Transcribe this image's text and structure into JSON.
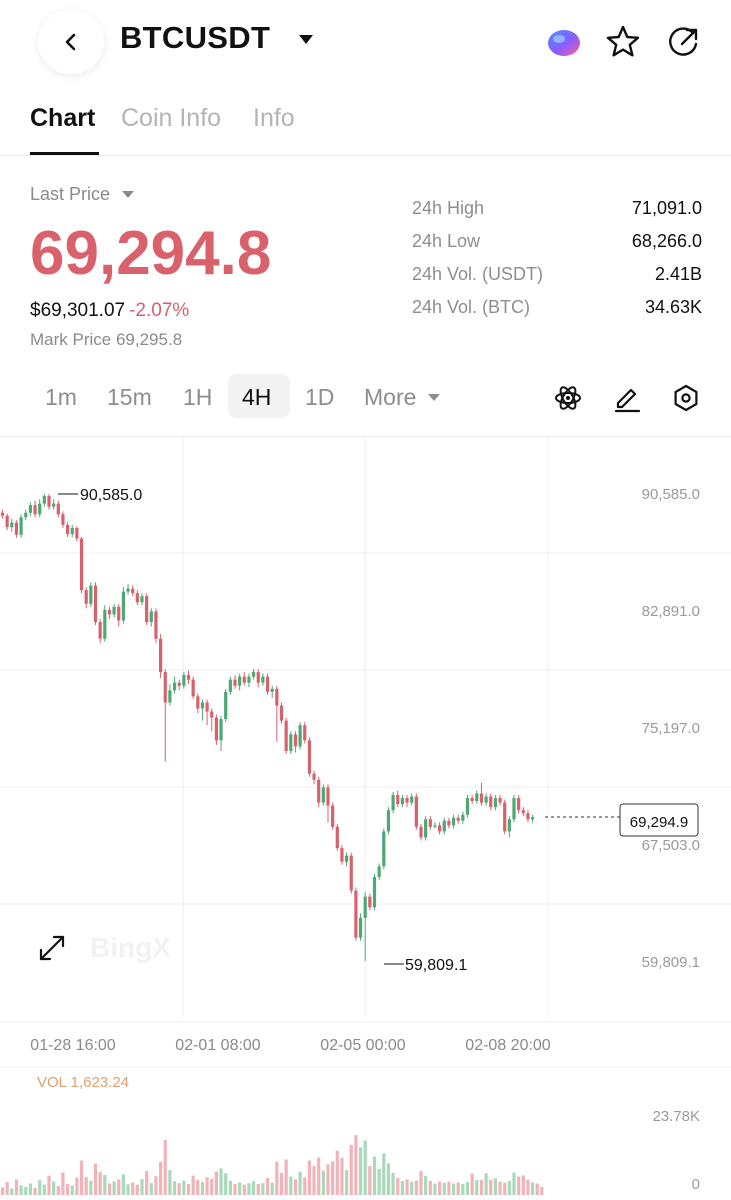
{
  "header": {
    "symbol": "BTCUSDT",
    "icons": [
      "chevron-left-icon",
      "caret-down-icon",
      "ai-orb-icon",
      "star-icon",
      "share-icon"
    ]
  },
  "tabs": [
    {
      "label": "Chart",
      "active": true
    },
    {
      "label": "Coin Info",
      "active": false
    },
    {
      "label": "Info",
      "active": false
    }
  ],
  "price": {
    "last_label": "Last Price",
    "last_price": "69,294.8",
    "usd_value": "$69,301.07",
    "change": "-2.07%",
    "mark_label": "Mark Price",
    "mark_price": "69,295.8",
    "color_down": "#d9616c",
    "color_up": "#4ea874"
  },
  "stats": [
    {
      "label": "24h High",
      "value": "71,091.0"
    },
    {
      "label": "24h Low",
      "value": "68,266.0"
    },
    {
      "label": "24h Vol. (USDT)",
      "value": "2.41B"
    },
    {
      "label": "24h Vol. (BTC)",
      "value": "34.63K"
    }
  ],
  "intervals": [
    {
      "label": "1m",
      "active": false
    },
    {
      "label": "15m",
      "active": false
    },
    {
      "label": "1H",
      "active": false
    },
    {
      "label": "4H",
      "active": true
    },
    {
      "label": "1D",
      "active": false
    },
    {
      "label": "More",
      "active": false
    }
  ],
  "tools": [
    "atom-indicator-icon",
    "pencil-draw-icon",
    "hexagon-settings-icon"
  ],
  "chart_data": {
    "type": "candlestick",
    "y_ticks": [
      "90,585.0",
      "82,891.0",
      "75,197.0",
      "67,503.0",
      "59,809.1"
    ],
    "ylim": [
      59809.1,
      90585.0
    ],
    "x_ticks": [
      "01-28 16:00",
      "02-01 08:00",
      "02-05 00:00",
      "02-08 20:00"
    ],
    "high_label": "90,585.0",
    "low_label": "59,809.1",
    "current_price_label": "69,294.9",
    "current_price": 69294.9,
    "watermark": "BingX",
    "candles": [
      [
        89350,
        89150,
        89550,
        88950
      ],
      [
        89150,
        88400,
        89300,
        88200
      ],
      [
        88400,
        88700,
        88950,
        88100
      ],
      [
        88700,
        87900,
        88850,
        87700
      ],
      [
        87900,
        89050,
        89250,
        87700
      ],
      [
        89050,
        89350,
        89550,
        88850
      ],
      [
        89350,
        89850,
        90050,
        89150
      ],
      [
        89850,
        89250,
        90150,
        89050
      ],
      [
        89250,
        89950,
        90250,
        89050
      ],
      [
        89950,
        90450,
        90585,
        89750
      ],
      [
        90450,
        89750,
        90585,
        89550
      ],
      [
        89750,
        89950,
        90250,
        89550
      ],
      [
        89950,
        89250,
        90150,
        89050
      ],
      [
        89250,
        88550,
        89450,
        88350
      ],
      [
        88550,
        87950,
        88750,
        87750
      ],
      [
        87950,
        88350,
        88550,
        87750
      ],
      [
        88350,
        87650,
        88450,
        87450
      ],
      [
        87650,
        84250,
        87750,
        84050
      ],
      [
        84250,
        83350,
        84450,
        83050
      ],
      [
        83350,
        84550,
        84750,
        83150
      ],
      [
        84550,
        82150,
        84750,
        81950
      ],
      [
        82150,
        81050,
        82350,
        80750
      ],
      [
        81050,
        82950,
        83250,
        80850
      ],
      [
        82950,
        82650,
        83150,
        82350
      ],
      [
        82650,
        83150,
        83350,
        82450
      ],
      [
        83150,
        82250,
        83350,
        81850
      ],
      [
        82250,
        84150,
        84450,
        82050
      ],
      [
        84150,
        84350,
        84650,
        83950
      ],
      [
        84350,
        84050,
        84550,
        83850
      ],
      [
        84050,
        83450,
        84250,
        83250
      ],
      [
        83450,
        83850,
        84050,
        83250
      ],
      [
        83850,
        82150,
        84050,
        81950
      ],
      [
        82150,
        82850,
        83050,
        81850
      ],
      [
        82850,
        81050,
        83050,
        80750
      ],
      [
        81050,
        78850,
        81350,
        78450
      ],
      [
        78850,
        76850,
        79050,
        72950
      ],
      [
        76850,
        77650,
        78050,
        76650
      ],
      [
        77650,
        78150,
        78550,
        77450
      ],
      [
        78150,
        77950,
        78350,
        77650
      ],
      [
        77950,
        78650,
        78850,
        77750
      ],
      [
        78650,
        78350,
        78950,
        78050
      ],
      [
        78350,
        77250,
        78550,
        77050
      ],
      [
        77250,
        76450,
        77450,
        76150
      ],
      [
        76450,
        76850,
        77050,
        75650
      ],
      [
        76850,
        76250,
        77050,
        75350
      ],
      [
        76250,
        75850,
        76450,
        74950
      ],
      [
        75850,
        74350,
        76050,
        74050
      ],
      [
        74350,
        75750,
        75950,
        73650
      ],
      [
        75750,
        77550,
        77750,
        75550
      ],
      [
        77550,
        78350,
        78550,
        77350
      ],
      [
        78350,
        77950,
        78650,
        77750
      ],
      [
        77950,
        78550,
        78750,
        77650
      ],
      [
        78550,
        78150,
        78850,
        77950
      ],
      [
        78150,
        78550,
        78750,
        77850
      ],
      [
        78550,
        78850,
        79050,
        78350
      ],
      [
        78850,
        78150,
        79050,
        77850
      ],
      [
        78150,
        78550,
        78750,
        77950
      ],
      [
        78550,
        77550,
        78750,
        77350
      ],
      [
        77550,
        77750,
        77950,
        77150
      ],
      [
        77750,
        76650,
        77950,
        74250
      ],
      [
        76650,
        75650,
        76850,
        75450
      ],
      [
        75650,
        73650,
        75850,
        73450
      ],
      [
        73650,
        74750,
        74950,
        73450
      ],
      [
        74750,
        73950,
        74950,
        73550
      ],
      [
        73950,
        75350,
        75550,
        73750
      ],
      [
        75350,
        74350,
        75550,
        74150
      ],
      [
        74350,
        72150,
        74550,
        71950
      ],
      [
        72150,
        71750,
        72350,
        71450
      ],
      [
        71750,
        70250,
        71950,
        69950
      ],
      [
        70250,
        71250,
        71450,
        70050
      ],
      [
        71250,
        70050,
        71450,
        68950
      ],
      [
        70050,
        68650,
        70250,
        68450
      ],
      [
        68650,
        67250,
        68850,
        67050
      ],
      [
        67250,
        66350,
        67450,
        66150
      ],
      [
        66350,
        66750,
        66950,
        66050
      ],
      [
        66750,
        64450,
        66950,
        64250
      ],
      [
        64450,
        61350,
        64650,
        61150
      ],
      [
        61350,
        62650,
        62950,
        61150
      ],
      [
        62650,
        64050,
        64350,
        59809
      ],
      [
        64050,
        63350,
        64250,
        63150
      ],
      [
        63350,
        65350,
        65550,
        63150
      ],
      [
        65350,
        66050,
        66250,
        65150
      ],
      [
        66050,
        68350,
        68550,
        65850
      ],
      [
        68350,
        69750,
        69950,
        68150
      ],
      [
        69750,
        70750,
        70950,
        69550
      ],
      [
        70750,
        70150,
        71050,
        69950
      ],
      [
        70150,
        70550,
        70750,
        69950
      ],
      [
        70550,
        70250,
        70750,
        69950
      ],
      [
        70250,
        70650,
        70850,
        70050
      ],
      [
        70650,
        68650,
        70850,
        68450
      ],
      [
        68650,
        67950,
        68850,
        67750
      ],
      [
        67950,
        69150,
        69350,
        67750
      ],
      [
        69150,
        68650,
        69350,
        68450
      ],
      [
        68650,
        68750,
        68950,
        68550
      ],
      [
        68750,
        68350,
        68950,
        68150
      ],
      [
        68350,
        69050,
        69250,
        68150
      ],
      [
        69050,
        68750,
        69250,
        68550
      ],
      [
        68750,
        69250,
        69450,
        68550
      ],
      [
        69250,
        69050,
        69450,
        68850
      ],
      [
        69050,
        69450,
        69650,
        68850
      ],
      [
        69450,
        70550,
        70750,
        69250
      ],
      [
        70550,
        70350,
        70750,
        70150
      ],
      [
        70350,
        70850,
        71050,
        70150
      ],
      [
        70850,
        70250,
        71550,
        70050
      ],
      [
        70250,
        70650,
        70850,
        70050
      ],
      [
        70650,
        69950,
        70850,
        69750
      ],
      [
        69950,
        70550,
        70750,
        69750
      ],
      [
        70550,
        70250,
        70750,
        70050
      ],
      [
        70250,
        68350,
        70450,
        68150
      ],
      [
        68350,
        69150,
        69350,
        67950
      ],
      [
        69150,
        70550,
        70750,
        68950
      ],
      [
        70550,
        69750,
        70750,
        69550
      ],
      [
        69750,
        69550,
        69950,
        69350
      ],
      [
        69550,
        69150,
        69750,
        68950
      ],
      [
        69150,
        69294.8,
        69450,
        68950
      ]
    ],
    "volume": {
      "label": "VOL",
      "value": "1,623.24",
      "max_label": "23.78K",
      "zero_label": "0",
      "max": 23780,
      "bars": [
        2100,
        3500,
        1800,
        4200,
        2600,
        2200,
        3100,
        1900,
        4000,
        2800,
        5200,
        3600,
        2400,
        6100,
        3000,
        2500,
        4700,
        9300,
        4800,
        3900,
        8500,
        6200,
        5400,
        3100,
        3700,
        4200,
        5600,
        2900,
        3400,
        2800,
        4300,
        6500,
        3200,
        5100,
        9000,
        14900,
        6700,
        3700,
        3200,
        3900,
        3000,
        5200,
        4100,
        3500,
        4800,
        4400,
        6300,
        7200,
        5900,
        3800,
        3000,
        3400,
        2800,
        3200,
        3700,
        3000,
        3200,
        4600,
        3300,
        9000,
        6000,
        9600,
        5000,
        4200,
        6300,
        4800,
        9300,
        7800,
        10100,
        6600,
        8300,
        9100,
        12000,
        10000,
        6700,
        13600,
        16200,
        12900,
        14700,
        7800,
        10400,
        7100,
        11200,
        8600,
        6000,
        4600,
        3800,
        4200,
        3600,
        3900,
        6500,
        5200,
        3800,
        3100,
        3600,
        3300,
        3600,
        3100,
        3400,
        3000,
        3500,
        5800,
        4000,
        4100,
        5900,
        4100,
        4500,
        3600,
        3300,
        3800,
        6100,
        5000,
        5300,
        4100,
        3400,
        3100,
        2200
      ]
    }
  }
}
